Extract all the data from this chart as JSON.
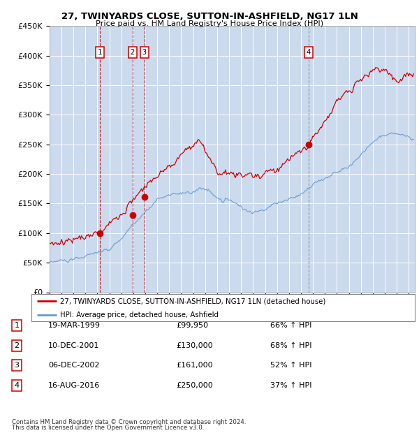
{
  "title": "27, TWINYARDS CLOSE, SUTTON-IN-ASHFIELD, NG17 1LN",
  "subtitle": "Price paid vs. HM Land Registry's House Price Index (HPI)",
  "ylim": [
    0,
    450000
  ],
  "yticks": [
    0,
    50000,
    100000,
    150000,
    200000,
    250000,
    300000,
    350000,
    400000,
    450000
  ],
  "xlim_start": 1995.0,
  "xlim_end": 2025.5,
  "bg_color": "#ccdaee",
  "red_color": "#cc0000",
  "blue_color": "#6699cc",
  "sale_dates": [
    1999.21,
    2001.94,
    2002.93,
    2016.62
  ],
  "sale_prices": [
    99950,
    130000,
    161000,
    250000
  ],
  "sale_labels": [
    "1",
    "2",
    "3",
    "4"
  ],
  "sale_vline_colors": [
    "#cc0000",
    "#cc0000",
    "#cc0000",
    "#888888"
  ],
  "sale_vline_styles": [
    "--",
    "--",
    "--",
    "--"
  ],
  "legend_line1": "27, TWINYARDS CLOSE, SUTTON-IN-ASHFIELD, NG17 1LN (detached house)",
  "legend_line2": "HPI: Average price, detached house, Ashfield",
  "table_data": [
    [
      "1",
      "19-MAR-1999",
      "£99,950",
      "66% ↑ HPI"
    ],
    [
      "2",
      "10-DEC-2001",
      "£130,000",
      "68% ↑ HPI"
    ],
    [
      "3",
      "06-DEC-2002",
      "£161,000",
      "52% ↑ HPI"
    ],
    [
      "4",
      "16-AUG-2016",
      "£250,000",
      "37% ↑ HPI"
    ]
  ],
  "footer1": "Contains HM Land Registry data © Crown copyright and database right 2024.",
  "footer2": "This data is licensed under the Open Government Licence v3.0."
}
